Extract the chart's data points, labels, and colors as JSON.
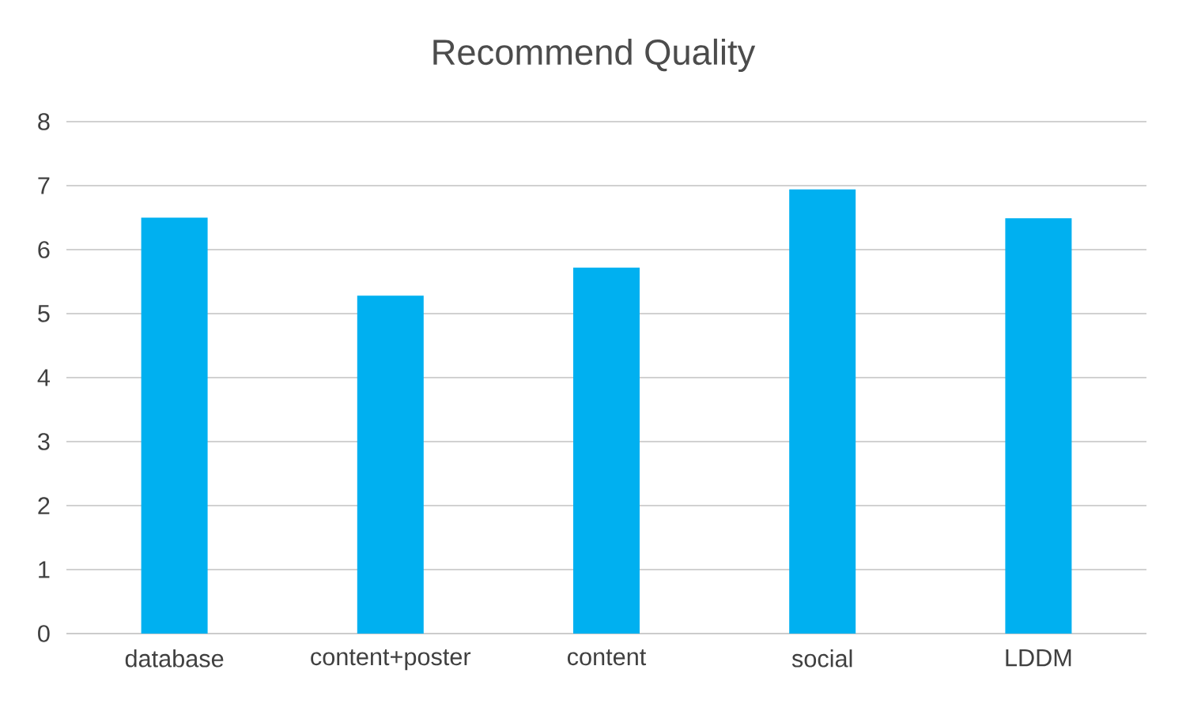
{
  "chart_data": {
    "type": "bar",
    "title": "Recommend Quality",
    "categories": [
      "database",
      "content+poster",
      "content",
      "social",
      "LDDM"
    ],
    "values": [
      6.5,
      5.28,
      5.72,
      6.94,
      6.49
    ],
    "color": "#00b0f0",
    "ylim": [
      0,
      8
    ],
    "yticks": [
      0,
      1,
      2,
      3,
      4,
      5,
      6,
      7,
      8
    ],
    "grid": "y"
  }
}
